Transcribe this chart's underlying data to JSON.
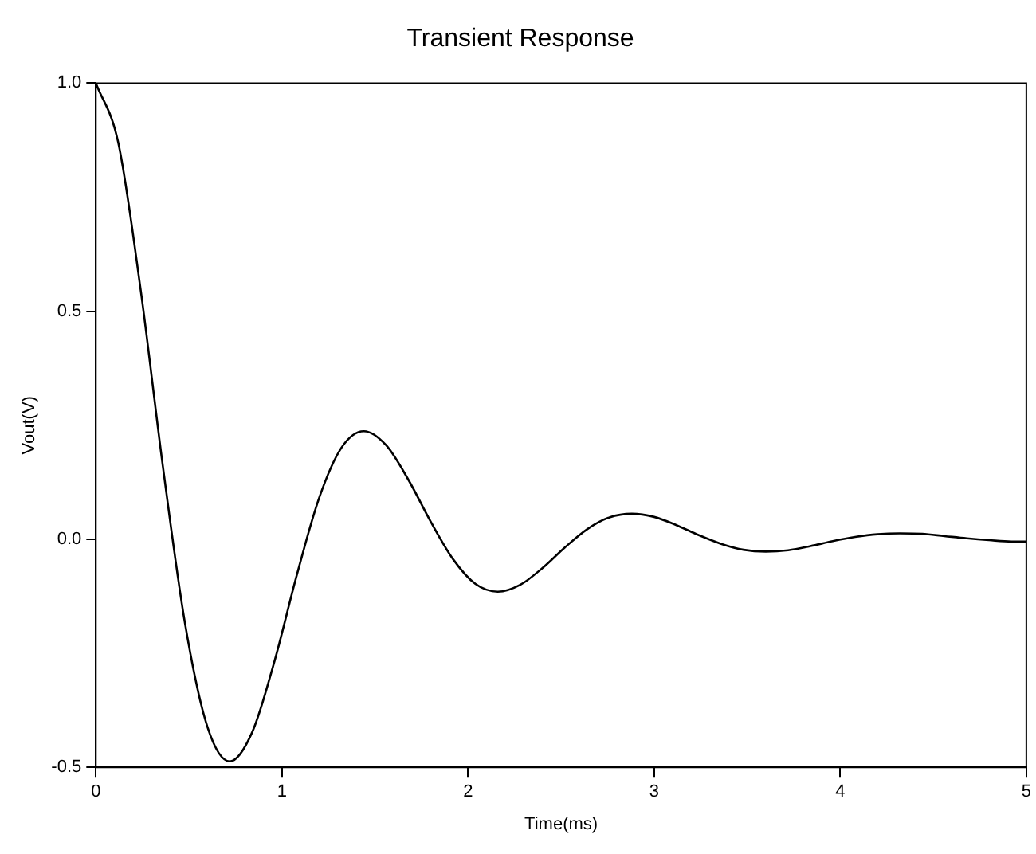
{
  "chart_data": {
    "type": "line",
    "title": "Transient Response",
    "xlabel": "Time(ms)",
    "ylabel": "Vout(V)",
    "x": [
      0,
      0.12,
      0.24,
      0.36,
      0.48,
      0.6,
      0.72,
      0.84,
      0.96,
      1.08,
      1.2,
      1.32,
      1.44,
      1.56,
      1.68,
      1.8,
      1.92,
      2.04,
      2.16,
      2.28,
      2.4,
      2.52,
      2.64,
      2.76,
      2.88,
      3,
      3.12,
      3.24,
      3.36,
      3.48,
      3.6,
      3.72,
      3.84,
      3.96,
      4.08,
      4.2,
      4.32,
      4.44,
      4.56,
      4.68,
      4.8,
      4.92,
      5
    ],
    "series": [
      {
        "color": "#000000",
        "values": [
          1,
          0.87,
          0.549,
          0.16,
          -0.187,
          -0.412,
          -0.487,
          -0.423,
          -0.267,
          -0.078,
          0.091,
          0.201,
          0.237,
          0.206,
          0.13,
          0.038,
          -0.044,
          -0.098,
          -0.115,
          -0.1,
          -0.063,
          -0.018,
          0.022,
          0.048,
          0.056,
          0.049,
          0.031,
          0.009,
          -0.01,
          -0.023,
          -0.027,
          -0.024,
          -0.015,
          -0.004,
          0.005,
          0.011,
          0.013,
          0.012,
          0.007,
          0.002,
          -0.002,
          -0.005,
          -0.005
        ]
      }
    ],
    "xlim": [
      0,
      5
    ],
    "xticks": [
      0,
      1,
      2,
      3,
      4,
      5
    ],
    "ylim": [
      -0.5,
      1
    ],
    "yticks": [
      {
        "value": -0.5,
        "label": "-0.5"
      },
      {
        "value": 0,
        "label": "0.0"
      },
      {
        "value": 0.5,
        "label": "0.5"
      },
      {
        "value": 1,
        "label": "1.0"
      }
    ],
    "grid": false,
    "legend": false,
    "marker": "none",
    "line_style": "solid"
  }
}
